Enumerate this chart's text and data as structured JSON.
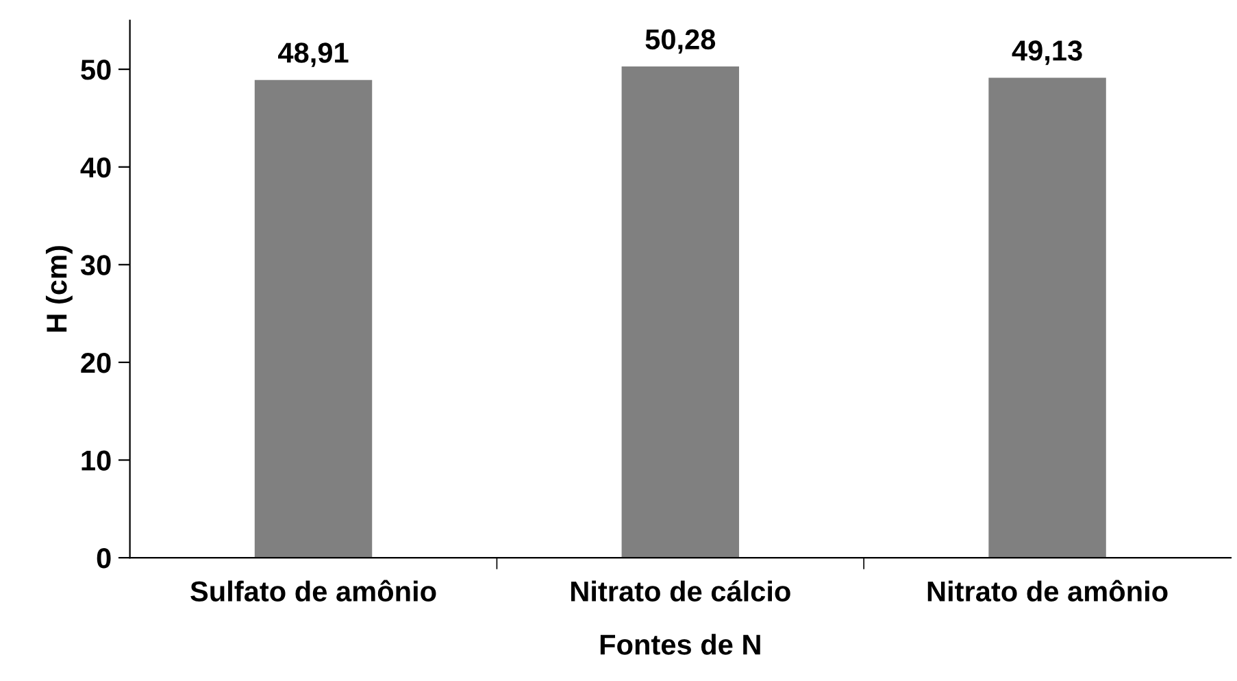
{
  "chart_data": {
    "type": "bar",
    "xlabel": "Fontes de N",
    "ylabel": "H (cm)",
    "categories": [
      "Sulfato de amônio",
      "Nitrato de cálcio",
      "Nitrato de amônio"
    ],
    "values": [
      48.91,
      50.28,
      49.13
    ],
    "value_labels": [
      "48,91",
      "50,28",
      "49,13"
    ],
    "color": "#808080",
    "ylim": [
      0,
      55
    ],
    "yticks": [
      0,
      10,
      20,
      30,
      40,
      50
    ],
    "grid": false,
    "legend": false
  }
}
